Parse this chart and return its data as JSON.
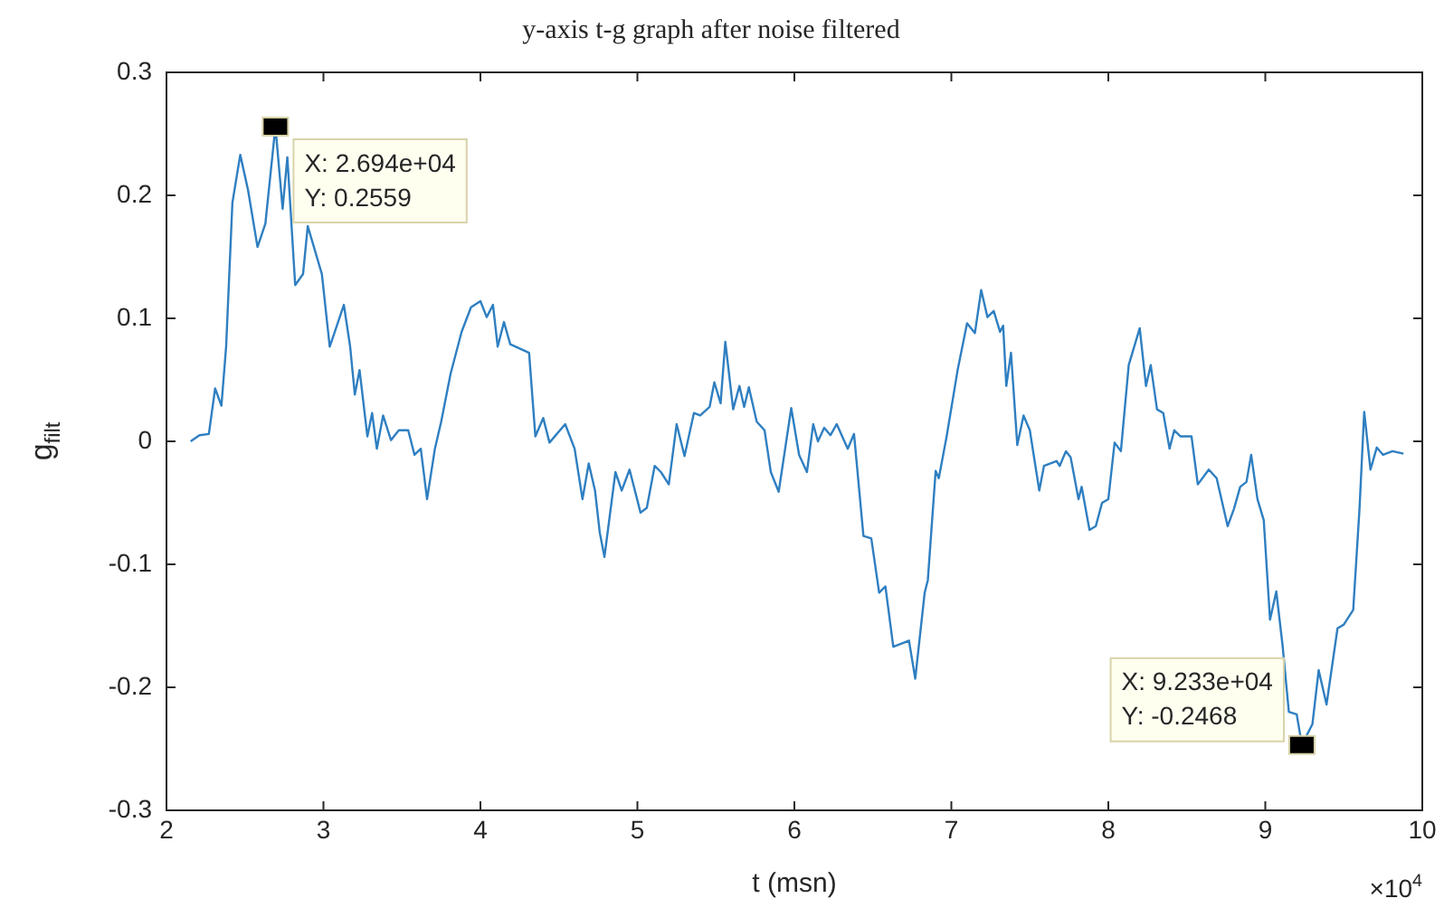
{
  "chart_data": {
    "type": "line",
    "title": "y-axis t-g graph after noise filtered",
    "xlabel": "t (msn)",
    "ylabel": "g$_{filt}$",
    "x": [
      2.154,
      2.21,
      2.27,
      2.31,
      2.35,
      2.38,
      2.42,
      2.47,
      2.52,
      2.58,
      2.63,
      2.694,
      2.74,
      2.77,
      2.82,
      2.87,
      2.9,
      2.99,
      3.04,
      3.08,
      3.13,
      3.17,
      3.2,
      3.23,
      3.28,
      3.31,
      3.34,
      3.38,
      3.43,
      3.48,
      3.54,
      3.58,
      3.62,
      3.66,
      3.71,
      3.75,
      3.81,
      3.88,
      3.94,
      4.0,
      4.04,
      4.08,
      4.11,
      4.15,
      4.19,
      4.31,
      4.35,
      4.4,
      4.44,
      4.54,
      4.6,
      4.65,
      4.69,
      4.73,
      4.76,
      4.79,
      4.86,
      4.9,
      4.95,
      5.02,
      5.06,
      5.11,
      5.15,
      5.2,
      5.25,
      5.3,
      5.36,
      5.4,
      5.46,
      5.49,
      5.53,
      5.56,
      5.61,
      5.65,
      5.68,
      5.71,
      5.76,
      5.81,
      5.85,
      5.9,
      5.98,
      6.03,
      6.08,
      6.12,
      6.15,
      6.19,
      6.23,
      6.27,
      6.34,
      6.38,
      6.44,
      6.49,
      6.54,
      6.58,
      6.63,
      6.69,
      6.73,
      6.77,
      6.83,
      6.85,
      6.9,
      6.92,
      6.97,
      7.04,
      7.1,
      7.15,
      7.19,
      7.23,
      7.27,
      7.31,
      7.33,
      7.35,
      7.38,
      7.42,
      7.46,
      7.5,
      7.56,
      7.59,
      7.67,
      7.69,
      7.73,
      7.76,
      7.81,
      7.83,
      7.88,
      7.92,
      7.96,
      8.0,
      8.04,
      8.08,
      8.13,
      8.2,
      8.24,
      8.27,
      8.31,
      8.35,
      8.39,
      8.42,
      8.46,
      8.53,
      8.57,
      8.64,
      8.69,
      8.76,
      8.8,
      8.84,
      8.88,
      8.91,
      8.95,
      8.99,
      9.03,
      9.07,
      9.11,
      9.15,
      9.2,
      9.233,
      9.3,
      9.34,
      9.39,
      9.46,
      9.5,
      9.56,
      9.6,
      9.63,
      9.67,
      9.71,
      9.75,
      9.81,
      9.88
    ],
    "values": [
      0,
      0.005,
      0.006,
      0.043,
      0.029,
      0.077,
      0.194,
      0.233,
      0.204,
      0.158,
      0.177,
      0.2559,
      0.189,
      0.231,
      0.127,
      0.136,
      0.175,
      0.136,
      0.077,
      0.092,
      0.111,
      0.077,
      0.038,
      0.058,
      0.004,
      0.023,
      -0.006,
      0.021,
      0.001,
      0.009,
      0.009,
      -0.011,
      -0.006,
      -0.047,
      -0.006,
      0.016,
      0.055,
      0.089,
      0.109,
      0.114,
      0.101,
      0.111,
      0.077,
      0.097,
      0.079,
      0.072,
      0.004,
      0.019,
      -0.001,
      0.014,
      -0.006,
      -0.047,
      -0.018,
      -0.04,
      -0.074,
      -0.094,
      -0.025,
      -0.04,
      -0.023,
      -0.058,
      -0.054,
      -0.02,
      -0.025,
      -0.035,
      0.014,
      -0.012,
      0.023,
      0.021,
      0.028,
      0.048,
      0.031,
      0.081,
      0.026,
      0.045,
      0.028,
      0.044,
      0.016,
      0.009,
      -0.025,
      -0.041,
      0.027,
      -0.011,
      -0.025,
      0.014,
      0,
      0.011,
      0.005,
      0.014,
      -0.006,
      0.006,
      -0.077,
      -0.079,
      -0.123,
      -0.118,
      -0.167,
      -0.164,
      -0.162,
      -0.193,
      -0.123,
      -0.113,
      -0.024,
      -0.03,
      0.004,
      0.058,
      0.096,
      0.088,
      0.123,
      0.101,
      0.106,
      0.089,
      0.094,
      0.045,
      0.072,
      -0.003,
      0.021,
      0.009,
      -0.04,
      -0.02,
      -0.016,
      -0.02,
      -0.008,
      -0.013,
      -0.047,
      -0.037,
      -0.072,
      -0.069,
      -0.05,
      -0.047,
      -0.001,
      -0.008,
      0.062,
      0.092,
      0.045,
      0.062,
      0.026,
      0.023,
      -0.006,
      0.009,
      0.004,
      0.004,
      -0.035,
      -0.023,
      -0.03,
      -0.069,
      -0.055,
      -0.037,
      -0.033,
      -0.011,
      -0.047,
      -0.064,
      -0.145,
      -0.122,
      -0.166,
      -0.22,
      -0.222,
      -0.2468,
      -0.23,
      -0.186,
      -0.214,
      -0.152,
      -0.149,
      -0.137,
      -0.055,
      0.024,
      -0.023,
      -0.005,
      -0.011,
      -0.008,
      -0.01
    ],
    "color": "#2f7fc1",
    "xlim": [
      2,
      10
    ],
    "xticks": [
      2,
      3,
      4,
      5,
      6,
      7,
      8,
      9,
      10
    ],
    "ylim": [
      -0.3,
      0.3
    ],
    "yticks": [
      -0.3,
      -0.2,
      -0.1,
      0,
      0.1,
      0.2,
      0.3
    ],
    "grid": false,
    "legend": false,
    "marker": "none",
    "line_style": "solid",
    "annotations": [
      {
        "text": "X: 2.694e+04\nY: 0.2559",
        "x": 2.694,
        "y": 0.2559
      },
      {
        "text": "X: 9.233e+04\nY: -0.2468",
        "x": 9.233,
        "y": -0.2468
      },
      "×10$^{4}$"
    ]
  }
}
